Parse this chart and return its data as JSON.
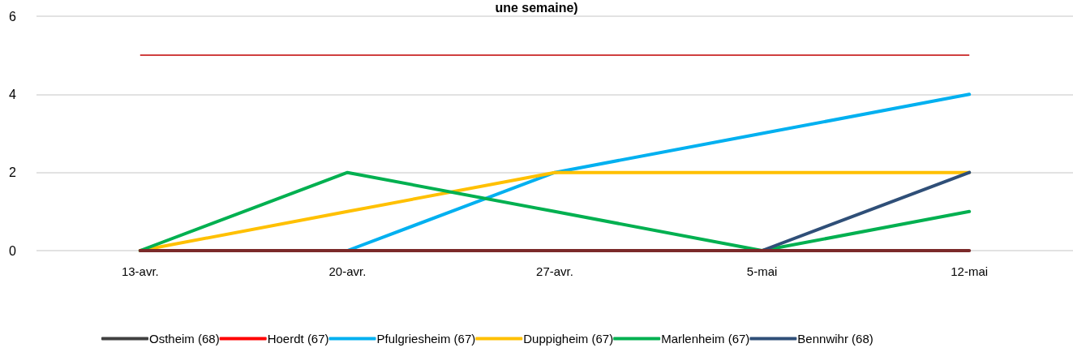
{
  "chart_data": {
    "type": "line",
    "title": "une semaine)",
    "categories": [
      "13-avr.",
      "20-avr.",
      "27-avr.",
      "5-mai",
      "12-mai"
    ],
    "series": [
      {
        "name": "Ostheim (68)",
        "color": "#404040",
        "values": [
          null,
          null,
          null,
          null,
          null
        ]
      },
      {
        "name": "Hoerdt (67)",
        "color": "#ff0000",
        "values": [
          null,
          null,
          null,
          null,
          null
        ]
      },
      {
        "name": "Pfulgriesheim (67)",
        "color": "#00b0f0",
        "values": [
          null,
          0,
          2,
          3,
          4
        ]
      },
      {
        "name": "Duppigheim (67)",
        "color": "#ffc000",
        "values": [
          0,
          1,
          2,
          2,
          2
        ]
      },
      {
        "name": "Marlenheim (67)",
        "color": "#00b050",
        "values": [
          0,
          2,
          1,
          0,
          1
        ]
      },
      {
        "name": "Bennwihr (68)",
        "color": "#2f4f78",
        "values": [
          null,
          null,
          null,
          0,
          2
        ]
      },
      {
        "color": "#7b2a2a",
        "values": [
          0,
          0,
          0,
          0,
          0
        ]
      }
    ],
    "ref_lines": [
      {
        "axis": "y",
        "value": 5,
        "color": "#c00000"
      }
    ],
    "ylim": [
      0,
      6
    ],
    "yticks": [
      0,
      2,
      4,
      6
    ],
    "grid": "y",
    "legend": "bottom",
    "marker": "none",
    "line_style": "solid"
  }
}
